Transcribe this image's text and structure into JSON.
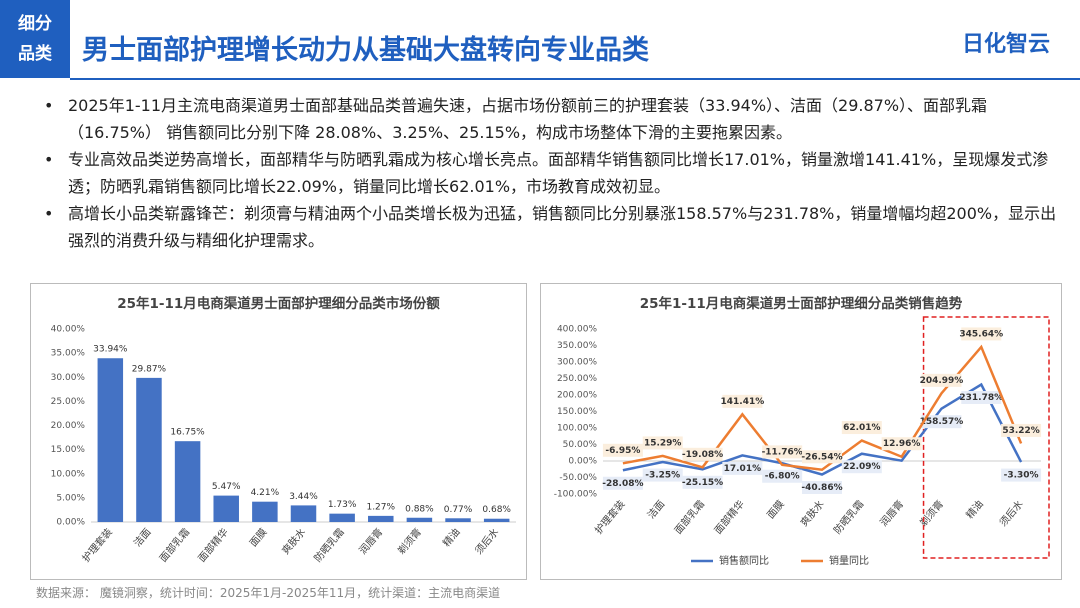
{
  "header": {
    "tag": [
      "细分",
      "品类"
    ],
    "title": "男士面部护理增长动力从基础大盘转向专业品类",
    "logo": "日化智云"
  },
  "bullets": [
    "2025年1-11月主流电商渠道男士面部基础品类普遍失速，占据市场份额前三的护理套装（33.94%）、洁面（29.87%）、面部乳霜（16.75%） 销售额同比分别下降 28.08%、3.25%、25.15%，构成市场整体下滑的主要拖累因素。",
    "专业高效品类逆势高增长，面部精华与防晒乳霜成为核心增长亮点。面部精华销售额同比增长17.01%，销量激增141.41%，呈现爆发式渗透；防晒乳霜销售额同比增长22.09%，销量同比增长62.01%，市场教育成效初显。",
    "高增长小品类崭露锋芒：剃须膏与精油两个小品类增长极为迅猛，销售额同比分别暴涨158.57%与231.78%，销量增幅均超200%，显示出强烈的消费升级与精细化护理需求。"
  ],
  "chart_data": [
    {
      "type": "bar",
      "title": "25年1-11月电商渠道男士面部护理细分品类市场份额",
      "categories": [
        "护理套装",
        "洁面",
        "面部乳霜",
        "面部精华",
        "面膜",
        "爽肤水",
        "防晒乳霜",
        "润唇膏",
        "剃须膏",
        "精油",
        "须后水"
      ],
      "values": [
        33.94,
        29.87,
        16.75,
        5.47,
        4.21,
        3.44,
        1.73,
        1.27,
        0.88,
        0.77,
        0.68
      ],
      "value_labels": [
        "33.94%",
        "29.87%",
        "16.75%",
        "5.47%",
        "4.21%",
        "3.44%",
        "1.73%",
        "1.27%",
        "0.88%",
        "0.77%",
        "0.68%"
      ],
      "color": "#4472c4",
      "ylim": [
        0,
        40
      ],
      "yticks": [
        {
          "value": 0,
          "label": "0.00%"
        },
        {
          "value": 5,
          "label": "5.00%"
        },
        {
          "value": 10,
          "label": "10.00%"
        },
        {
          "value": 15,
          "label": "15.00%"
        },
        {
          "value": 20,
          "label": "20.00%"
        },
        {
          "value": 25,
          "label": "25.00%"
        },
        {
          "value": 30,
          "label": "30.00%"
        },
        {
          "value": 35,
          "label": "35.00%"
        },
        {
          "value": 40,
          "label": "40.00%"
        }
      ],
      "grid": false
    },
    {
      "type": "line",
      "title": "25年1-11月电商渠道男士面部护理细分品类销售趋势",
      "categories": [
        "护理套装",
        "洁面",
        "面部乳霜",
        "面部精华",
        "面膜",
        "爽肤水",
        "防晒乳霜",
        "润唇膏",
        "剃须膏",
        "精油",
        "须后水"
      ],
      "series": [
        {
          "name": "销售额同比",
          "color": "#4472c4",
          "values": [
            -28.08,
            -3.25,
            -25.15,
            17.01,
            -6.8,
            -40.86,
            22.09,
            1,
            158.57,
            231.78,
            -3.3
          ],
          "value_labels": [
            "-28.08%",
            "-3.25%",
            "-25.15%",
            "17.01%",
            "-6.80%",
            "-40.86%",
            "22.09%",
            null,
            "158.57%",
            "231.78%",
            "-3.30%"
          ]
        },
        {
          "name": "销量同比",
          "color": "#ed7d31",
          "values": [
            -6.95,
            15.29,
            -19.08,
            141.41,
            -11.76,
            -26.54,
            62.01,
            12.96,
            204.99,
            345.64,
            53.22
          ],
          "value_labels": [
            "-6.95%",
            "15.29%",
            "-19.08%",
            "141.41%",
            "-11.76%",
            "-26.54%",
            "62.01%",
            "12.96%",
            "204.99%",
            "345.64%",
            "53.22%"
          ]
        }
      ],
      "ylim": [
        -100,
        400
      ],
      "yticks": [
        {
          "value": -100,
          "label": "-100.00%"
        },
        {
          "value": -50,
          "label": "-50.00%"
        },
        {
          "value": 0,
          "label": "0.00%"
        },
        {
          "value": 50,
          "label": "50.00%"
        },
        {
          "value": 100,
          "label": "100.00%"
        },
        {
          "value": 150,
          "label": "150.00%"
        },
        {
          "value": 200,
          "label": "200.00%"
        },
        {
          "value": 250,
          "label": "250.00%"
        },
        {
          "value": 300,
          "label": "300.00%"
        },
        {
          "value": 350,
          "label": "350.00%"
        },
        {
          "value": 400,
          "label": "400.00%"
        }
      ],
      "grid": false,
      "legend": "bottom"
    }
  ],
  "source": "数据来源：  魔镜洞察，统计时间：2025年1月-2025年11月，统计渠道：主流电商渠道"
}
